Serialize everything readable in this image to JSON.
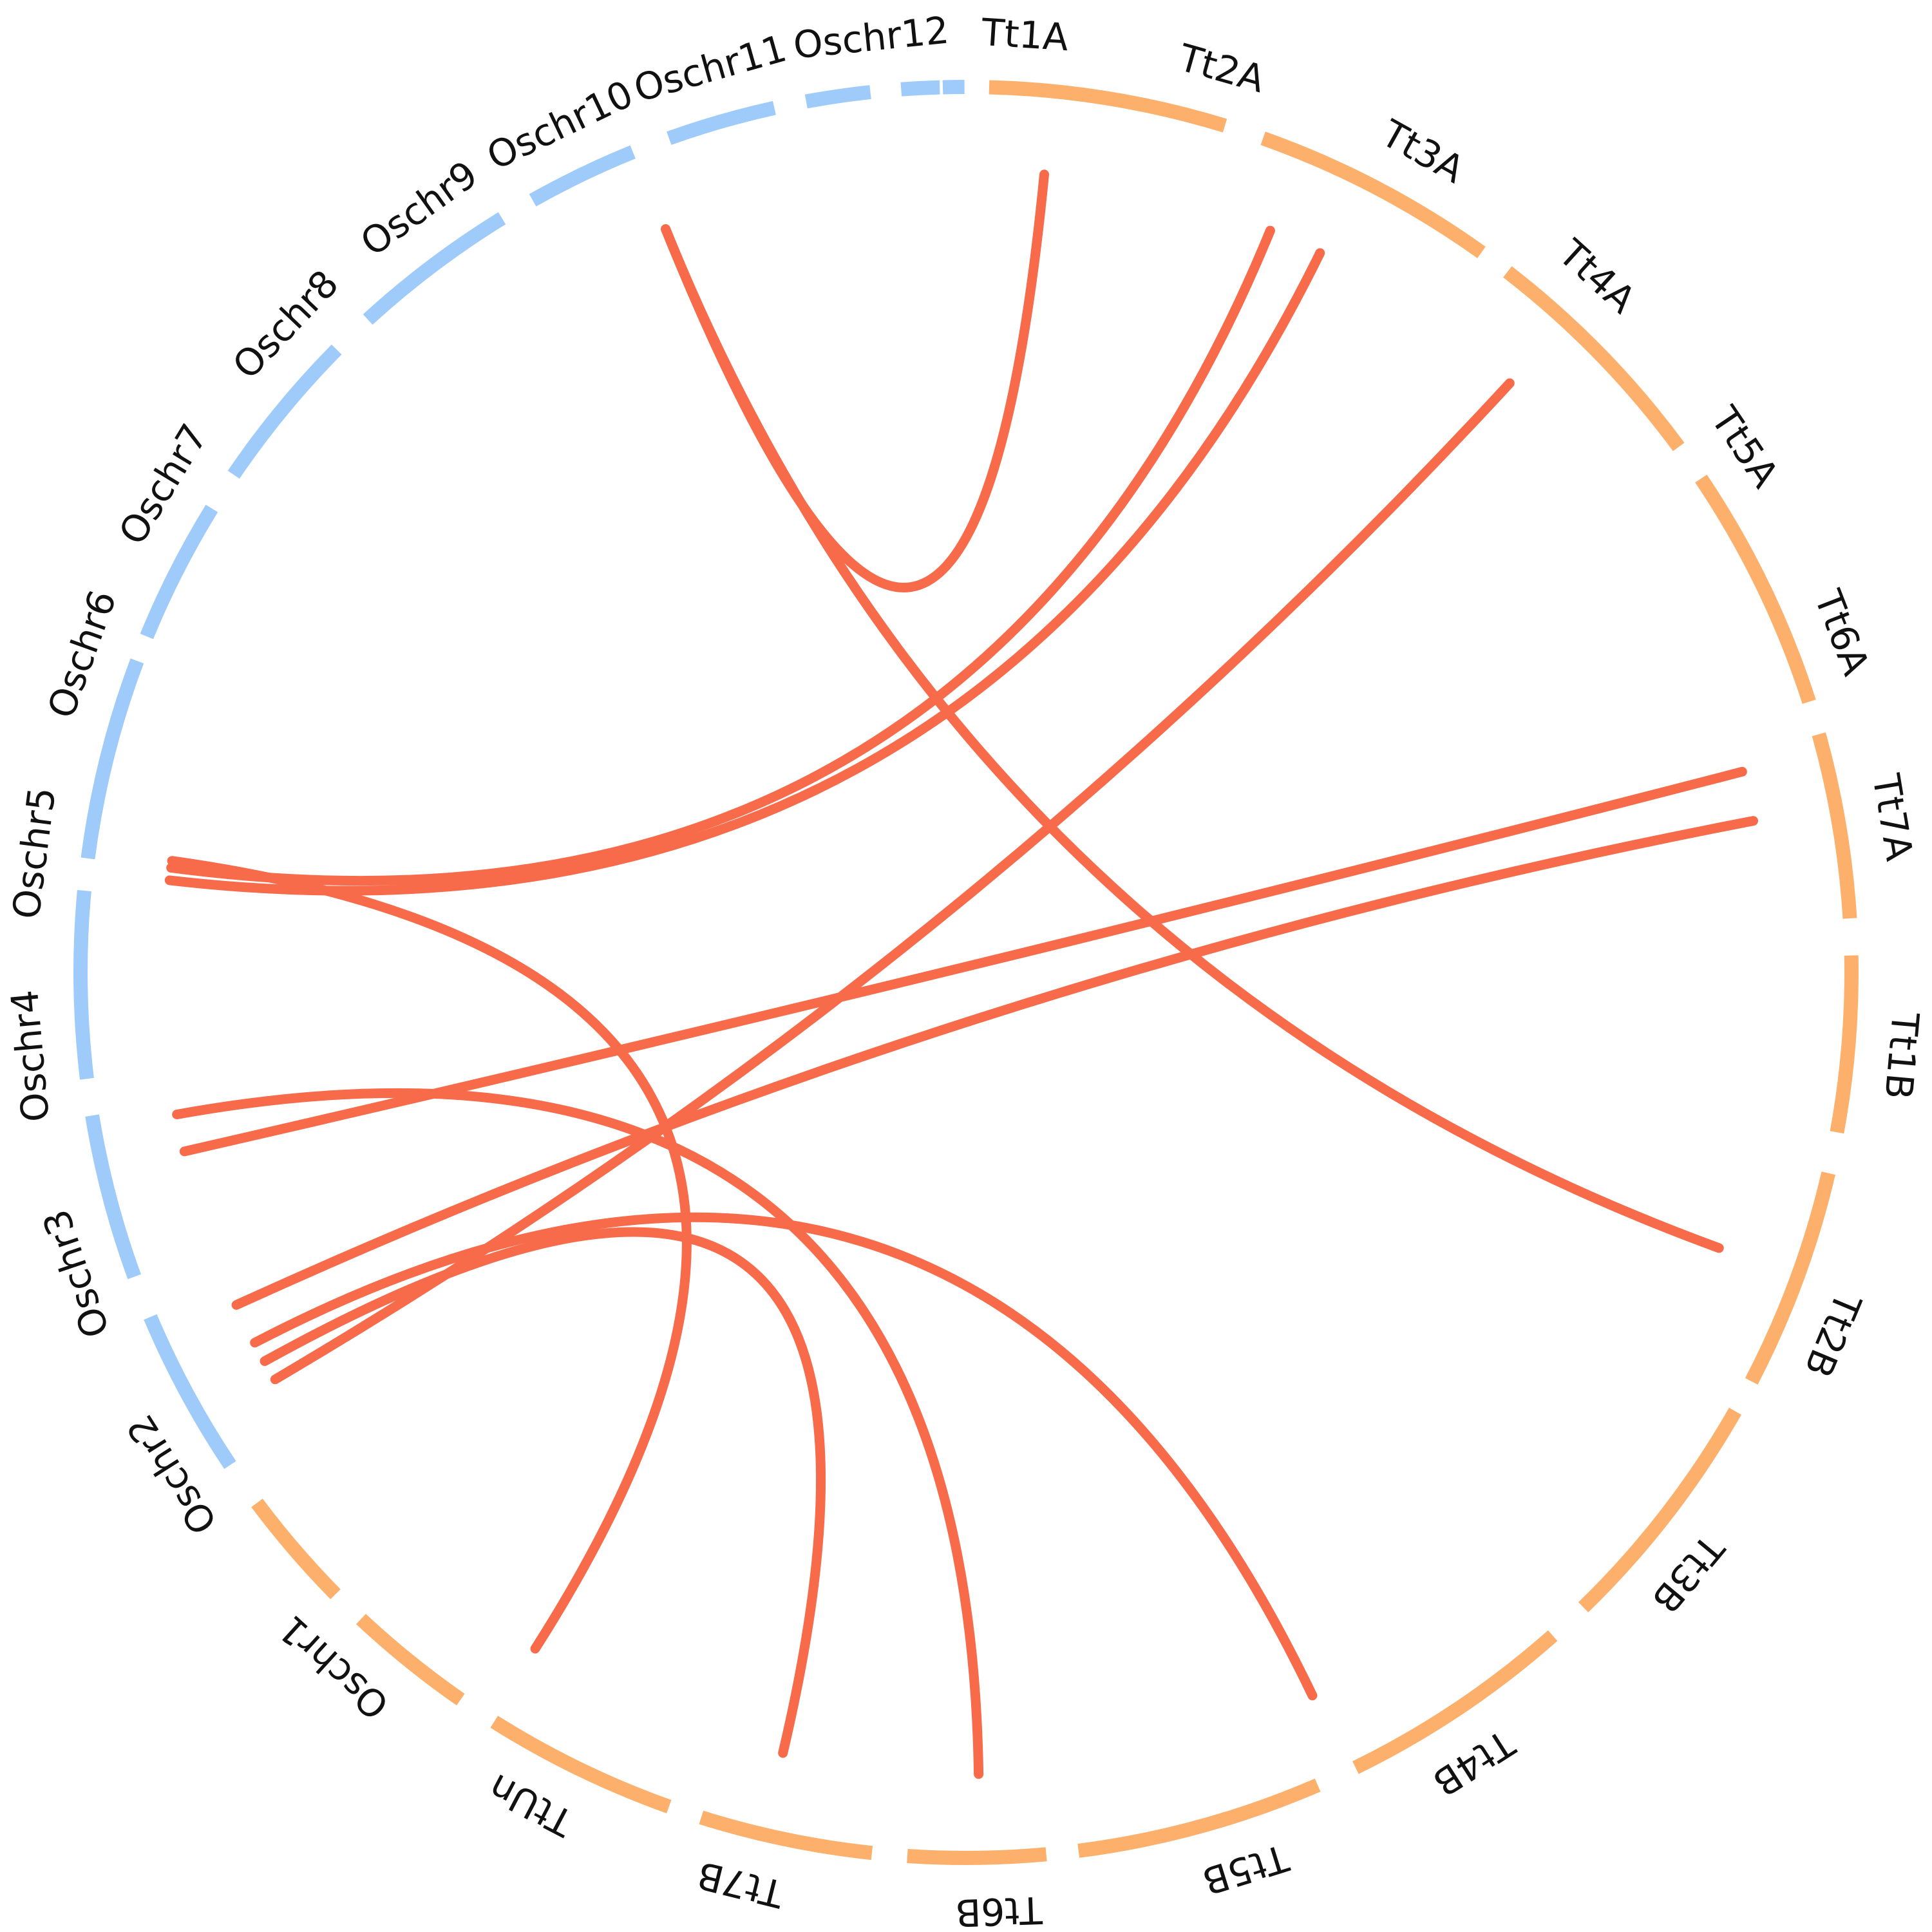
{
  "colors": {
    "rice": "#9ecbfa",
    "wheat": "#fcb06c",
    "link": "#f76a4a",
    "label": "#111111"
  },
  "segments": [
    {
      "name": "Tt1A",
      "group": "wheat"
    },
    {
      "name": "Tt2A",
      "group": "wheat"
    },
    {
      "name": "Tt3A",
      "group": "wheat"
    },
    {
      "name": "Tt4A",
      "group": "wheat"
    },
    {
      "name": "Tt5A",
      "group": "wheat"
    },
    {
      "name": "Tt6A",
      "group": "wheat"
    },
    {
      "name": "Tt7A",
      "group": "wheat"
    },
    {
      "name": "Tt1B",
      "group": "wheat"
    },
    {
      "name": "Tt2B",
      "group": "wheat"
    },
    {
      "name": "Tt3B",
      "group": "wheat"
    },
    {
      "name": "Tt4B",
      "group": "wheat"
    },
    {
      "name": "Tt5B",
      "group": "wheat"
    },
    {
      "name": "Tt6B",
      "group": "wheat"
    },
    {
      "name": "Tt7B",
      "group": "wheat"
    },
    {
      "name": "TtUn",
      "group": "wheat"
    },
    {
      "name": "Oschr1",
      "group": "rice"
    },
    {
      "name": "Oschr2",
      "group": "rice"
    },
    {
      "name": "Oschr3",
      "group": "rice"
    },
    {
      "name": "Oschr4",
      "group": "rice"
    },
    {
      "name": "Oschr5",
      "group": "rice"
    },
    {
      "name": "Oschr6",
      "group": "rice"
    },
    {
      "name": "Oschr7",
      "group": "rice"
    },
    {
      "name": "Oschr8",
      "group": "rice"
    },
    {
      "name": "Oschr9",
      "group": "rice"
    },
    {
      "name": "Oschr10",
      "group": "rice"
    },
    {
      "name": "Oschr11",
      "group": "rice"
    },
    {
      "name": "Oschr12",
      "group": "rice"
    }
  ],
  "links": [
    {
      "from": "Tt1A",
      "to": "Oschr10"
    },
    {
      "from": "Tt2A",
      "to": "Oschr4"
    },
    {
      "from": "Tt2A",
      "to": "Oschr4"
    },
    {
      "from": "Tt3A",
      "to": "Oschr2"
    },
    {
      "from": "Tt6A",
      "to": "Oschr3"
    },
    {
      "from": "Tt6A",
      "to": "Oschr2"
    },
    {
      "from": "Tt1B",
      "to": "Oschr10"
    },
    {
      "from": "Tt3B",
      "to": "Oschr2"
    },
    {
      "from": "Tt4B",
      "to": "Oschr3"
    },
    {
      "from": "Tt6B",
      "to": "Oschr2"
    },
    {
      "from": "TtUn",
      "to": "Oschr4"
    }
  ]
}
